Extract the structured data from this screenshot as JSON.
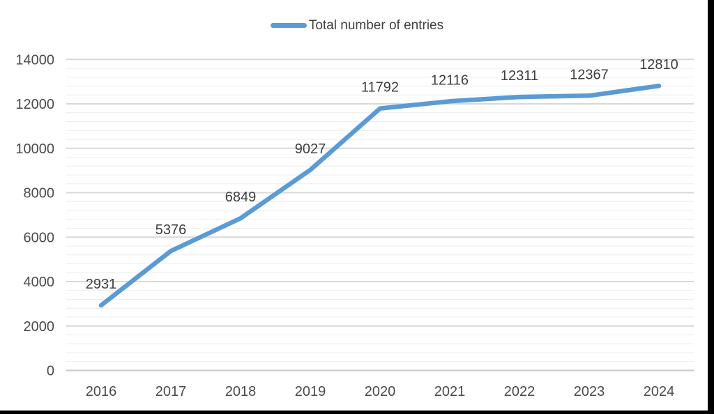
{
  "chart_data": {
    "type": "line",
    "title": "",
    "legend_label": "Total number of entries",
    "legend_position": "top",
    "categories": [
      "2016",
      "2017",
      "2018",
      "2019",
      "2020",
      "2021",
      "2022",
      "2023",
      "2024"
    ],
    "series": [
      {
        "name": "Total number of entries",
        "values": [
          2931,
          5376,
          6849,
          9027,
          11792,
          12116,
          12311,
          12367,
          12810
        ]
      }
    ],
    "data_labels_shown": true,
    "xlabel": "",
    "ylabel": "",
    "ylim": [
      0,
      14000
    ],
    "y_ticks": [
      0,
      2000,
      4000,
      6000,
      8000,
      10000,
      12000,
      14000
    ],
    "y_major_step": 2000,
    "y_minor_step": 400,
    "grid": "horizontal major and minor gridlines",
    "colors": {
      "line": "#5B9BD5",
      "major_grid": "#D8D8D8",
      "minor_grid": "#ECECEC",
      "axis_line": "#C9C9C9",
      "tick_text": "#4A4A4A",
      "label_text": "#3D3D3D",
      "legend_text": "#404040",
      "background": "#FFFFFF",
      "screenshot_border": "#000000"
    }
  }
}
